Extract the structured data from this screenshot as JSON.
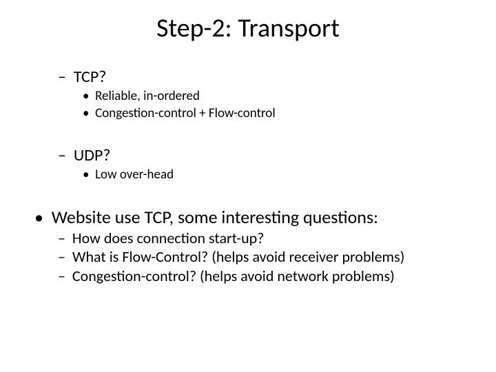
{
  "title": "Step-2: Transport",
  "tcp": {
    "heading": "TCP?",
    "points": [
      "Reliable, in-ordered",
      "Congestion-control + Flow-control"
    ]
  },
  "udp": {
    "heading": "UDP?",
    "points": [
      "Low over-head"
    ]
  },
  "main": {
    "heading": "Website use TCP, some interesting questions:",
    "points": [
      "How does connection start-up?",
      "What is Flow-Control? (helps avoid receiver problems)",
      "Congestion-control? (helps avoid network problems)"
    ]
  },
  "colors": {
    "text": "#000000",
    "background": "#ffffff"
  },
  "typography": {
    "title_fontsize": 38,
    "lvl1_fontsize": 26,
    "lvl2_fontsize": 24,
    "lvl3_fontsize": 19,
    "sub2_fontsize": 22,
    "font_family": "Calibri"
  }
}
